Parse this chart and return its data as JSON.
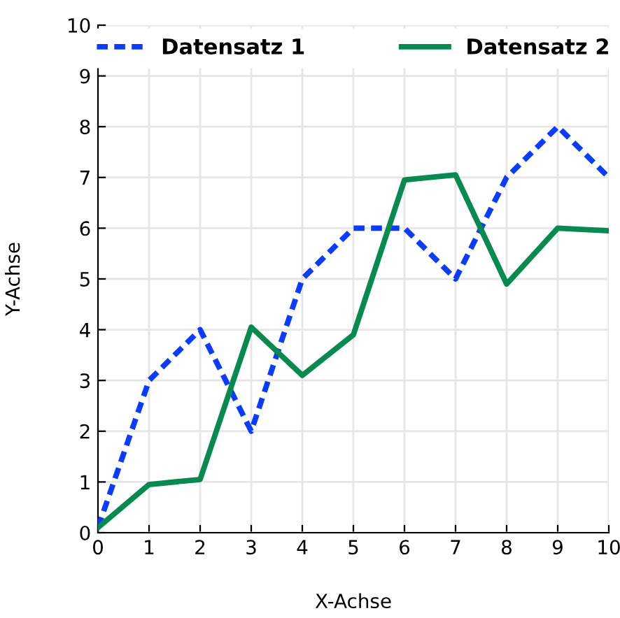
{
  "chart_data": {
    "type": "line",
    "xlabel": "X-Achse",
    "ylabel": "Y-Achse",
    "x": [
      0,
      1,
      2,
      3,
      4,
      5,
      6,
      7,
      8,
      9,
      10
    ],
    "series": [
      {
        "name": "Datensatz 1",
        "color": "#0a3cff",
        "line_style": "dotted",
        "values": [
          0.1,
          3,
          4,
          2,
          5,
          6,
          6,
          5,
          7,
          8,
          7
        ]
      },
      {
        "name": "Datensatz 2",
        "color": "#078a4f",
        "line_style": "solid",
        "values": [
          0.1,
          0.95,
          1.05,
          4.05,
          3.1,
          3.9,
          6.95,
          7.05,
          4.9,
          6.0,
          5.95
        ]
      }
    ],
    "xlim": [
      0,
      10
    ],
    "ylim": [
      0,
      10
    ],
    "xticks": [
      0,
      1,
      2,
      3,
      4,
      5,
      6,
      7,
      8,
      9,
      10
    ],
    "yticks": [
      0,
      1,
      2,
      3,
      4,
      5,
      6,
      7,
      8,
      9,
      10
    ],
    "grid": true,
    "legend": "top",
    "marker": "none"
  }
}
